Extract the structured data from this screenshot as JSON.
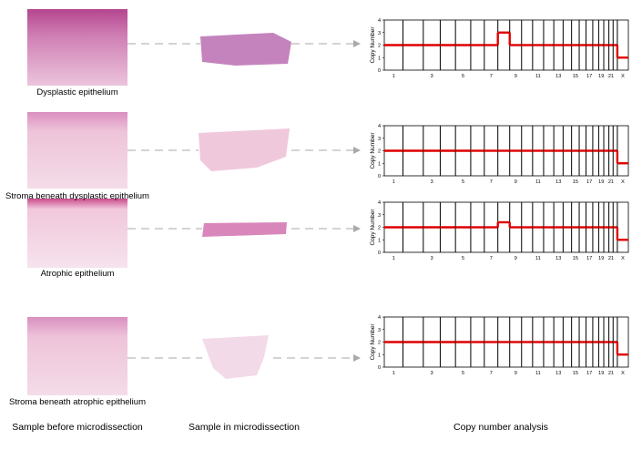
{
  "rows": [
    {
      "caption": "Dysplastic epithelium",
      "chart": {
        "ylabel": "Copy Number",
        "ylim": [
          0,
          4
        ],
        "yticks": [
          0,
          1,
          2,
          3,
          4
        ],
        "line_color": "#e00000",
        "chromosomes": [
          "1",
          null,
          "3",
          null,
          "5",
          null,
          "7",
          null,
          "9",
          null,
          "11",
          null,
          "13",
          null,
          "15",
          null,
          "17",
          null,
          "19",
          null,
          "21",
          null,
          "X"
        ],
        "values": [
          2,
          2,
          2,
          2,
          2,
          2,
          2,
          3,
          2,
          2,
          2,
          2,
          2,
          2,
          2,
          2,
          2,
          2,
          2,
          2,
          2,
          2,
          1
        ]
      }
    },
    {
      "caption": "Stroma beneath dysplastic epithelium",
      "chart": {
        "ylabel": "Copy Number",
        "ylim": [
          0,
          4
        ],
        "yticks": [
          0,
          1,
          2,
          3,
          4
        ],
        "line_color": "#e00000",
        "chromosomes": [
          "1",
          null,
          "3",
          null,
          "5",
          null,
          "7",
          null,
          "9",
          null,
          "11",
          null,
          "13",
          null,
          "15",
          null,
          "17",
          null,
          "19",
          null,
          "21",
          null,
          "X"
        ],
        "values": [
          2,
          2,
          2,
          2,
          2,
          2,
          2,
          2,
          2,
          2,
          2,
          2,
          2,
          2,
          2,
          2,
          2,
          2,
          2,
          2,
          2,
          2,
          1
        ]
      }
    },
    {
      "caption": "Atrophic epithelium",
      "chart": {
        "ylabel": "Copy Number",
        "ylim": [
          0,
          4
        ],
        "yticks": [
          0,
          1,
          2,
          3,
          4
        ],
        "line_color": "#e00000",
        "chromosomes": [
          "1",
          null,
          "3",
          null,
          "5",
          null,
          "7",
          null,
          "9",
          null,
          "11",
          null,
          "13",
          null,
          "15",
          null,
          "17",
          null,
          "19",
          null,
          "21",
          null,
          "X"
        ],
        "values": [
          2,
          2,
          2,
          2,
          2,
          2,
          2,
          2.4,
          2,
          2,
          2,
          2,
          2,
          2,
          2,
          2,
          2,
          2,
          2,
          2,
          2,
          2,
          1
        ]
      }
    },
    {
      "caption": "Stroma beneath atrophic epithelium",
      "chart": {
        "ylabel": "Copy Number",
        "ylim": [
          0,
          4
        ],
        "yticks": [
          0,
          1,
          2,
          3,
          4
        ],
        "line_color": "#e00000",
        "chromosomes": [
          "1",
          null,
          "3",
          null,
          "5",
          null,
          "7",
          null,
          "9",
          null,
          "11",
          null,
          "13",
          null,
          "15",
          null,
          "17",
          null,
          "19",
          null,
          "21",
          null,
          "X"
        ],
        "values": [
          2,
          2,
          2,
          2,
          2,
          2,
          2,
          2,
          2,
          2,
          2,
          2,
          2,
          2,
          2,
          2,
          2,
          2,
          2,
          2,
          2,
          2,
          1
        ]
      }
    }
  ],
  "footer": [
    "Sample before microdissection",
    "Sample in microdissection",
    "Copy number analysis"
  ]
}
